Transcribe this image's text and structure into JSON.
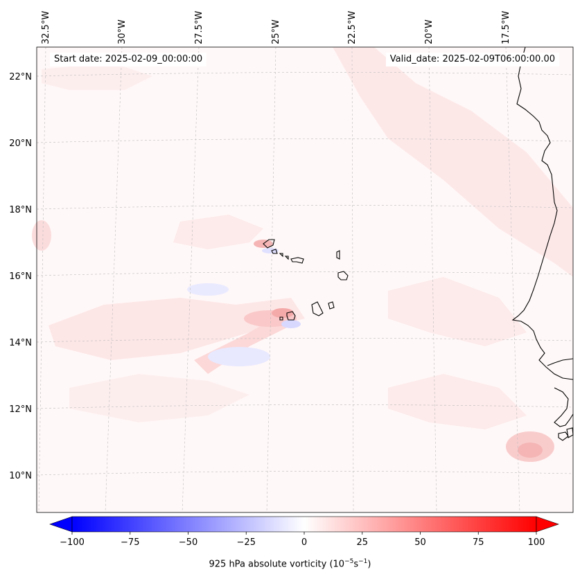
{
  "header": {
    "start_date": "Start date: 2025-02-09_00:00:00",
    "valid_date": "Valid_date: 2025-02-09T06:00:00.00"
  },
  "map": {
    "longitude_labels": [
      "32.5°W",
      "30°W",
      "27.5°W",
      "25°W",
      "22.5°W",
      "20°W",
      "17.5°W"
    ],
    "latitude_labels": [
      "22°N",
      "20°N",
      "18°N",
      "16°N",
      "14°N",
      "12°N",
      "10°N"
    ],
    "extent": {
      "lon": [
        -32.6,
        -15.0
      ],
      "lat": [
        8.8,
        22.8
      ]
    }
  },
  "colorbar": {
    "variable": "925 hPa absolute vorticity",
    "units": "(10",
    "units_exp1": "−5",
    "units_mid": "s",
    "units_exp2": "−1",
    "units_close": ")",
    "tick_labels": [
      "−100",
      "−75",
      "−50",
      "−25",
      "0",
      "25",
      "50",
      "75",
      "100"
    ],
    "range": [
      -100,
      100
    ],
    "colors": {
      "min": "#0000ff",
      "mid": "#ffffff",
      "max": "#ff0000"
    }
  }
}
